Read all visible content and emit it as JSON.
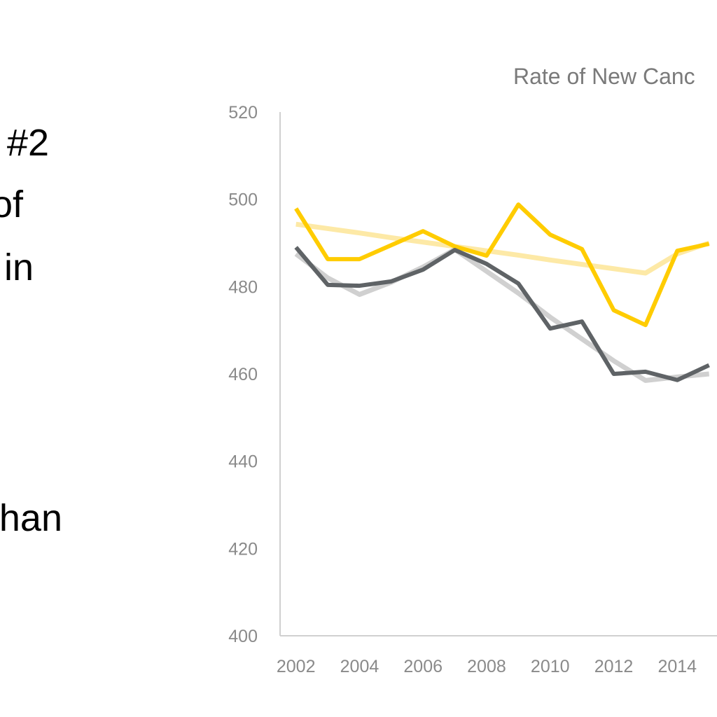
{
  "slide_text": [
    "#2",
    "of",
    "in",
    "han"
  ],
  "chart_data": {
    "type": "line",
    "title": "Rate of New Canc",
    "x": [
      2002,
      2003,
      2004,
      2005,
      2006,
      2007,
      2008,
      2009,
      2010,
      2011,
      2012,
      2013,
      2014,
      2015
    ],
    "series": [
      {
        "color": "#fde9a6",
        "width": 7,
        "values": [
          494.3,
          493.3,
          492.3,
          491.2,
          490.2,
          489.2,
          488.2,
          487.2,
          486.1,
          485.1,
          484.1,
          483.1,
          487.5,
          490
        ]
      },
      {
        "color": "#d0d0d0",
        "width": 7,
        "values": [
          487.5,
          482,
          478.2,
          481,
          484.5,
          488.5,
          483.5,
          478.5,
          473,
          468,
          463,
          458.5,
          459.3,
          460
        ]
      },
      {
        "color": "#ffcc00",
        "width": 6,
        "values": [
          497.9,
          486.3,
          486.3,
          489.5,
          492.7,
          489.2,
          487.1,
          498.8,
          491.9,
          488.6,
          474.6,
          471.2,
          488.2,
          489.8
        ]
      },
      {
        "color": "#5f6366",
        "width": 6,
        "values": [
          489.0,
          480.4,
          480.2,
          481.2,
          483.9,
          488.4,
          485.2,
          480.7,
          470.4,
          472.0,
          460.0,
          460.5,
          458.6,
          462
        ]
      }
    ],
    "xlim": [
      2001.5,
      2015.25
    ],
    "xticks": [
      2002,
      2004,
      2006,
      2008,
      2010,
      2012,
      2014
    ],
    "ylim": [
      400,
      520
    ],
    "yticks": [
      400,
      420,
      440,
      460,
      480,
      500,
      520
    ]
  }
}
